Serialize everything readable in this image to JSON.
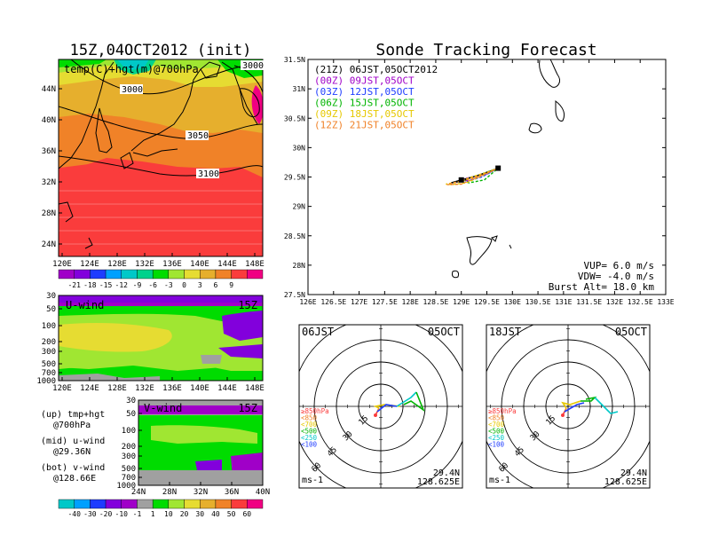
{
  "map_panel": {
    "title": "15Z,04OCT2012 (init)",
    "label": "temp(C)+hgt(m)@700hPa",
    "contour_labels": [
      "3000",
      "3000",
      "3050",
      "3100"
    ],
    "lat_ticks": [
      "44N",
      "40N",
      "36N",
      "32N",
      "28N",
      "24N"
    ],
    "lon_ticks": [
      "120E",
      "124E",
      "128E",
      "132E",
      "136E",
      "140E",
      "144E",
      "148E"
    ],
    "colorbar_labels": [
      "-21",
      "-18",
      "-15",
      "-12",
      "-9",
      "-6",
      "-3",
      "0",
      "3",
      "6",
      "9"
    ],
    "colorbar_colors": [
      "#a000c8",
      "#8200dc",
      "#1e3cff",
      "#00a0ff",
      "#00c8c8",
      "#00d28c",
      "#00dc00",
      "#a0e632",
      "#e6dc32",
      "#e6af2d",
      "#f08228",
      "#fa3c3c",
      "#f00082"
    ]
  },
  "u_panel": {
    "label": "U-wind",
    "time": "15Z",
    "p_ticks": [
      "30",
      "50",
      "100",
      "200",
      "300",
      "500",
      "700",
      "1000"
    ],
    "lon_ticks": [
      "120E",
      "124E",
      "128E",
      "132E",
      "136E",
      "140E",
      "144E",
      "148E"
    ]
  },
  "v_panel": {
    "label": "V-wind",
    "time": "15Z",
    "p_ticks": [
      "30",
      "50",
      "100",
      "200",
      "300",
      "500",
      "700",
      "1000"
    ],
    "lat_ticks": [
      "24N",
      "28N",
      "32N",
      "36N",
      "40N"
    ]
  },
  "legend_text": {
    "up1": "(up) tmp+hgt",
    "up2": "@700hPa",
    "mid1": "(mid) u-wind",
    "mid2": "@29.36N",
    "bot1": "(bot) v-wind",
    "bot2": "@128.66E"
  },
  "wind_colorbar": {
    "labels": [
      "-40",
      "-30",
      "-20",
      "-10",
      "-1",
      "1",
      "10",
      "20",
      "30",
      "40",
      "50",
      "60"
    ],
    "colors": [
      "#00c8c8",
      "#00a0ff",
      "#1e3cff",
      "#8200dc",
      "#a000c8",
      "#a0a0a0",
      "#00dc00",
      "#a0e632",
      "#e6dc32",
      "#e6af2d",
      "#f08228",
      "#fa3c3c",
      "#f00082"
    ]
  },
  "sonde": {
    "title": "Sonde Tracking Forecast",
    "legend": [
      {
        "text": "(21Z) 06JST,05OCT2012",
        "color": "#000000"
      },
      {
        "text": "(00Z) 09JST,05OCT",
        "color": "#a000c8"
      },
      {
        "text": "(03Z) 12JST,05OCT",
        "color": "#1e3cff"
      },
      {
        "text": "(06Z) 15JST,05OCT",
        "color": "#00b400"
      },
      {
        "text": "(09Z) 18JST,05OCT",
        "color": "#e6c800"
      },
      {
        "text": "(12Z) 21JST,05OCT",
        "color": "#f08228"
      }
    ],
    "lat_ticks": [
      "31.5N",
      "31N",
      "30.5N",
      "30N",
      "29.5N",
      "29N",
      "28.5N",
      "28N",
      "27.5N"
    ],
    "lon_ticks": [
      "126E",
      "126.5E",
      "127E",
      "127.5E",
      "128E",
      "128.5E",
      "129E",
      "129.5E",
      "130E",
      "130.5E",
      "131E",
      "131.5E",
      "132E",
      "132.5E",
      "133E"
    ],
    "info": [
      "VUP= 6.0 m/s",
      "VDW= -4.0 m/s",
      "Burst Alt= 18.0 km"
    ]
  },
  "chart_data": {
    "type": "scatter",
    "title": "Sonde Tracking Forecast",
    "xlim": [
      126,
      133
    ],
    "ylim": [
      27.5,
      31.5
    ],
    "series": [
      {
        "name": "(21Z) 06JST,05OCT2012",
        "color": "#000000",
        "x": [
          129.72,
          129.6,
          129.3,
          129.0,
          128.8,
          128.95,
          129.4,
          129.72
        ],
        "y": [
          29.65,
          29.6,
          29.52,
          29.45,
          29.4,
          29.42,
          29.55,
          29.65
        ]
      },
      {
        "name": "(00Z) 09JST,05OCT",
        "color": "#a000c8",
        "x": [
          129.72,
          129.55,
          129.3,
          129.05,
          128.95,
          129.2,
          129.5,
          129.72
        ],
        "y": [
          29.65,
          29.58,
          29.52,
          29.47,
          29.42,
          29.45,
          29.55,
          29.65
        ]
      },
      {
        "name": "(03Z) 12JST,05OCT",
        "color": "#1e3cff",
        "x": [
          129.72,
          129.5,
          129.25,
          129.05,
          129.1,
          129.4,
          129.72
        ],
        "y": [
          29.65,
          29.55,
          29.5,
          29.45,
          29.42,
          29.5,
          29.65
        ]
      },
      {
        "name": "(06Z) 15JST,05OCT",
        "color": "#00b400",
        "x": [
          129.72,
          129.55,
          129.3,
          129.05,
          129.15,
          129.45,
          129.72
        ],
        "y": [
          29.65,
          29.6,
          29.52,
          29.45,
          29.4,
          29.45,
          29.65
        ]
      },
      {
        "name": "(09Z) 18JST,05OCT",
        "color": "#e6c800",
        "x": [
          129.72,
          129.5,
          129.2,
          128.95,
          128.7,
          128.8,
          129.1,
          129.72
        ],
        "y": [
          29.65,
          29.58,
          29.5,
          29.42,
          29.38,
          29.37,
          29.4,
          29.65
        ]
      },
      {
        "name": "(12Z) 21JST,05OCT",
        "color": "#f08228",
        "x": [
          129.72,
          129.45,
          129.1,
          128.85,
          128.72,
          129.0,
          129.72
        ],
        "y": [
          29.65,
          29.55,
          29.45,
          29.4,
          29.37,
          29.38,
          29.65
        ]
      }
    ],
    "launch": {
      "x": 129.72,
      "y": 29.65
    },
    "landing": {
      "x": 129.0,
      "y": 29.45
    }
  },
  "hodograph_left": {
    "time": "06JST",
    "date": "05OCT",
    "rings": [
      "15",
      "30",
      "45",
      "60"
    ],
    "unit": "ms-1",
    "lat": "29.4N",
    "lon": "128.625E",
    "levels": [
      {
        "text": "≥850hPa",
        "color": "#fa3c3c"
      },
      {
        "text": "<850",
        "color": "#f08228"
      },
      {
        "text": "<700",
        "color": "#e6c800"
      },
      {
        "text": "<500",
        "color": "#00b400"
      },
      {
        "text": "<250",
        "color": "#00c8c8"
      },
      {
        "text": "<100",
        "color": "#1e3cff"
      }
    ]
  },
  "hodograph_right": {
    "time": "18JST",
    "date": "05OCT",
    "rings": [
      "15",
      "30",
      "45",
      "60"
    ],
    "unit": "ms-1",
    "lat": "29.4N",
    "lon": "128.625E",
    "levels": [
      {
        "text": "≥850hPa",
        "color": "#fa3c3c"
      },
      {
        "text": "<850",
        "color": "#f08228"
      },
      {
        "text": "<700",
        "color": "#e6c800"
      },
      {
        "text": "<500",
        "color": "#00b400"
      },
      {
        "text": "<250",
        "color": "#00c8c8"
      },
      {
        "text": "<100",
        "color": "#1e3cff"
      }
    ]
  }
}
